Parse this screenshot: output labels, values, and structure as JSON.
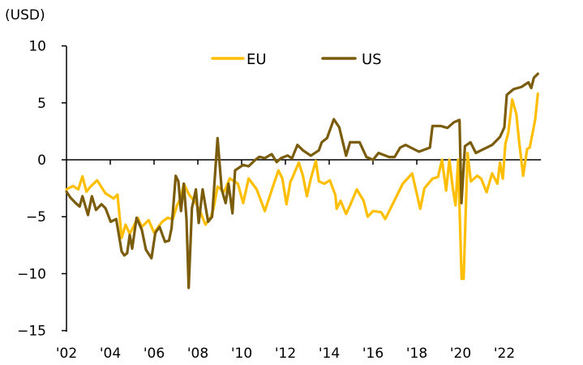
{
  "chart_data": {
    "type": "line",
    "title": "",
    "ylabel": "(USD)",
    "xlabel": "",
    "ylim": [
      -15,
      10
    ],
    "xlim": [
      2002,
      2023.6
    ],
    "yticks": [
      10,
      5,
      0,
      -5,
      -10,
      -15
    ],
    "ytick_labels": [
      "10",
      "5",
      "0",
      "−5",
      "−10",
      "−15"
    ],
    "xticks": [
      2002,
      2004,
      2006,
      2008,
      2010,
      2012,
      2014,
      2016,
      2018,
      2020,
      2022
    ],
    "xtick_labels": [
      "'02",
      "'04",
      "'06",
      "'08",
      "'10",
      "'12",
      "'14",
      "'16",
      "'18",
      "'20",
      "'22"
    ],
    "grid": false,
    "legend_position": "top-center",
    "series": [
      {
        "name": "EU",
        "color": "#FFBF00",
        "x": [
          2002.0,
          2002.3,
          2002.54,
          2002.73,
          2002.91,
          2003.1,
          2003.4,
          2003.78,
          2004.15,
          2004.33,
          2004.52,
          2004.7,
          2004.89,
          2005.26,
          2005.44,
          2005.75,
          2006.0,
          2006.37,
          2006.62,
          2006.86,
          2007.05,
          2007.23,
          2007.36,
          2007.6,
          2007.91,
          2008.1,
          2008.35,
          2008.6,
          2008.72,
          2008.9,
          2009.2,
          2009.46,
          2009.83,
          2010.07,
          2010.32,
          2010.69,
          2011.06,
          2011.43,
          2011.68,
          2011.86,
          2012.05,
          2012.23,
          2012.3,
          2012.61,
          2012.8,
          2012.98,
          2013.16,
          2013.39,
          2013.53,
          2013.78,
          2014.03,
          2014.28,
          2014.34,
          2014.52,
          2014.77,
          2014.95,
          2015.26,
          2015.57,
          2015.76,
          2016.0,
          2016.37,
          2016.56,
          2016.87,
          2017.36,
          2017.79,
          2018.16,
          2018.35,
          2018.72,
          2018.97,
          2019.15,
          2019.34,
          2019.49,
          2019.65,
          2019.77,
          2019.89,
          2020.05,
          2020.14,
          2020.32,
          2020.47,
          2020.76,
          2020.94,
          2021.19,
          2021.44,
          2021.68,
          2021.8,
          2021.93,
          2022.05,
          2022.18,
          2022.36,
          2022.55,
          2022.67,
          2022.86,
          2023.04,
          2023.16,
          2023.41,
          2023.53
        ],
        "values": [
          -2.6,
          -2.3,
          -2.6,
          -1.45,
          -2.8,
          -2.35,
          -1.8,
          -2.95,
          -3.4,
          -3.06,
          -6.86,
          -5.7,
          -6.5,
          -5.1,
          -5.9,
          -5.3,
          -6.4,
          -5.44,
          -5.1,
          -5.2,
          -4.0,
          -3.3,
          -2.1,
          -3.06,
          -3.8,
          -4.5,
          -5.7,
          -5.0,
          -4.25,
          -2.35,
          -2.8,
          -1.64,
          -2.1,
          -3.8,
          -1.64,
          -2.6,
          -4.5,
          -2.35,
          -0.93,
          -1.64,
          -3.9,
          -1.9,
          -1.66,
          -0.24,
          -1.4,
          -3.2,
          -1.66,
          -0.1,
          -1.9,
          -2.1,
          -1.8,
          -3.1,
          -4.3,
          -3.6,
          -4.75,
          -4.0,
          -2.6,
          -3.6,
          -5.0,
          -4.5,
          -4.6,
          -5.2,
          -4.0,
          -2.1,
          -1.2,
          -4.3,
          -2.5,
          -1.66,
          -1.5,
          0.0,
          -2.7,
          0.0,
          -2.6,
          -4.0,
          0.0,
          -10.45,
          -10.45,
          0.6,
          -1.9,
          -1.4,
          -1.66,
          -2.85,
          -1.2,
          -2.1,
          -0.24,
          -1.66,
          1.4,
          2.4,
          5.3,
          4.0,
          1.66,
          -1.4,
          0.95,
          1.07,
          3.56,
          5.8
        ]
      },
      {
        "name": "US",
        "color": "#7A5C0A",
        "x": [
          2002.0,
          2002.17,
          2002.42,
          2002.6,
          2002.73,
          2002.98,
          2003.16,
          2003.35,
          2003.6,
          2003.78,
          2004.02,
          2004.27,
          2004.52,
          2004.64,
          2004.77,
          2004.89,
          2005.0,
          2005.2,
          2005.44,
          2005.63,
          2005.88,
          2006.06,
          2006.25,
          2006.5,
          2006.68,
          2006.8,
          2006.99,
          2007.11,
          2007.23,
          2007.36,
          2007.48,
          2007.58,
          2007.73,
          2007.91,
          2008.04,
          2008.22,
          2008.47,
          2008.65,
          2008.9,
          2009.09,
          2009.27,
          2009.4,
          2009.58,
          2009.7,
          2010.07,
          2010.32,
          2010.63,
          2010.81,
          2011.06,
          2011.37,
          2011.6,
          2011.8,
          2012.1,
          2012.3,
          2012.55,
          2012.8,
          2013.16,
          2013.53,
          2013.66,
          2013.9,
          2014.21,
          2014.46,
          2014.77,
          2014.95,
          2015.39,
          2015.7,
          2016.0,
          2016.25,
          2016.74,
          2016.99,
          2017.24,
          2017.49,
          2018.1,
          2018.6,
          2018.72,
          2019.09,
          2019.4,
          2019.7,
          2019.95,
          2020.04,
          2020.2,
          2020.45,
          2020.7,
          2020.94,
          2021.44,
          2021.8,
          2022.0,
          2022.11,
          2022.42,
          2022.79,
          2023.1,
          2023.23,
          2023.35,
          2023.53
        ],
        "values": [
          -2.8,
          -3.3,
          -3.8,
          -4.1,
          -3.2,
          -4.85,
          -3.2,
          -4.4,
          -3.9,
          -4.25,
          -5.44,
          -5.2,
          -8.05,
          -8.4,
          -8.2,
          -6.6,
          -7.8,
          -5.1,
          -6.15,
          -7.9,
          -8.65,
          -6.4,
          -5.9,
          -7.2,
          -7.1,
          -6.0,
          -1.4,
          -1.9,
          -4.5,
          -2.1,
          -5.2,
          -11.25,
          -4.25,
          -2.6,
          -5.55,
          -2.6,
          -5.44,
          -5.0,
          1.9,
          -2.6,
          -3.8,
          -2.1,
          -4.7,
          -0.93,
          -0.45,
          -0.57,
          0.0,
          0.26,
          0.14,
          0.5,
          -0.2,
          0.14,
          0.38,
          0.12,
          1.3,
          0.83,
          0.36,
          0.83,
          1.54,
          1.9,
          3.56,
          2.85,
          0.36,
          1.54,
          1.54,
          0.24,
          0.0,
          0.6,
          0.24,
          0.24,
          1.07,
          1.3,
          0.71,
          1.07,
          2.97,
          2.97,
          2.8,
          3.3,
          3.5,
          -3.8,
          1.2,
          1.54,
          0.6,
          0.83,
          1.3,
          2.0,
          2.85,
          5.7,
          6.2,
          6.4,
          6.8,
          6.3,
          7.2,
          7.55
        ]
      }
    ]
  }
}
